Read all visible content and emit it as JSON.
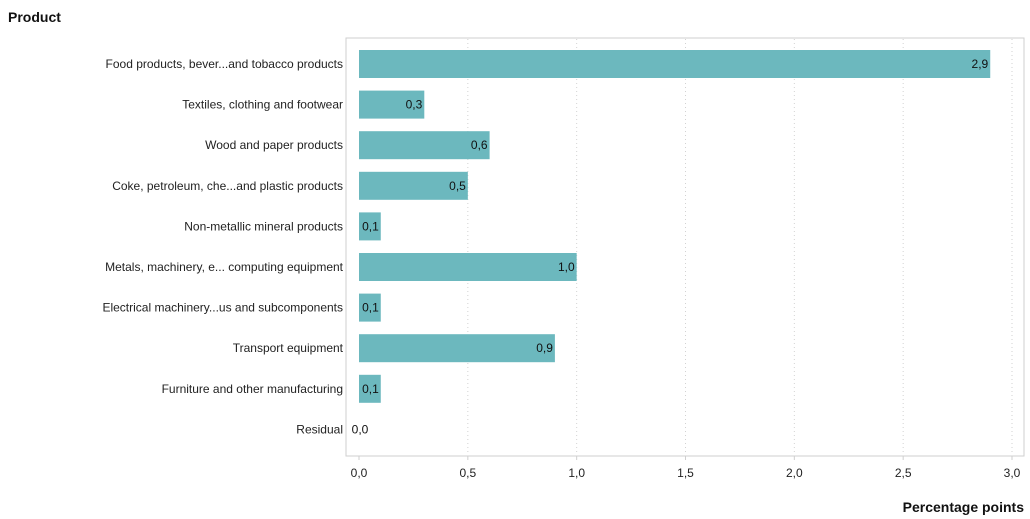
{
  "chart_data": {
    "type": "bar",
    "orientation": "horizontal",
    "title": "",
    "category_axis_label": "Product",
    "value_axis_label": "Percentage points",
    "categories": [
      "Food products, bever...and tobacco products",
      "Textiles, clothing and footwear",
      "Wood and paper products",
      "Coke, petroleum, che...and plastic products",
      "Non-metallic mineral products",
      "Metals, machinery, e... computing equipment",
      "Electrical machinery...us and subcomponents",
      "Transport equipment",
      "Furniture and other manufacturing",
      "Residual"
    ],
    "values": [
      2.9,
      0.3,
      0.6,
      0.5,
      0.1,
      1.0,
      0.1,
      0.9,
      0.1,
      0.0
    ],
    "value_labels": [
      "2,9",
      "0,3",
      "0,6",
      "0,5",
      "0,1",
      "1,0",
      "0,1",
      "0,9",
      "0,1",
      "0,0"
    ],
    "xlim": [
      0,
      3.0
    ],
    "xticks": [
      0,
      0.5,
      1.0,
      1.5,
      2.0,
      2.5,
      3.0
    ],
    "xtick_labels": [
      "0,0",
      "0,5",
      "1,0",
      "1,5",
      "2,0",
      "2,5",
      "3,0"
    ],
    "grid": "vertical dotted",
    "legend": "none",
    "colors": {
      "bar": "#6cb8be",
      "frame": "#cfcfcf",
      "grid": "#d2d2d2"
    }
  }
}
